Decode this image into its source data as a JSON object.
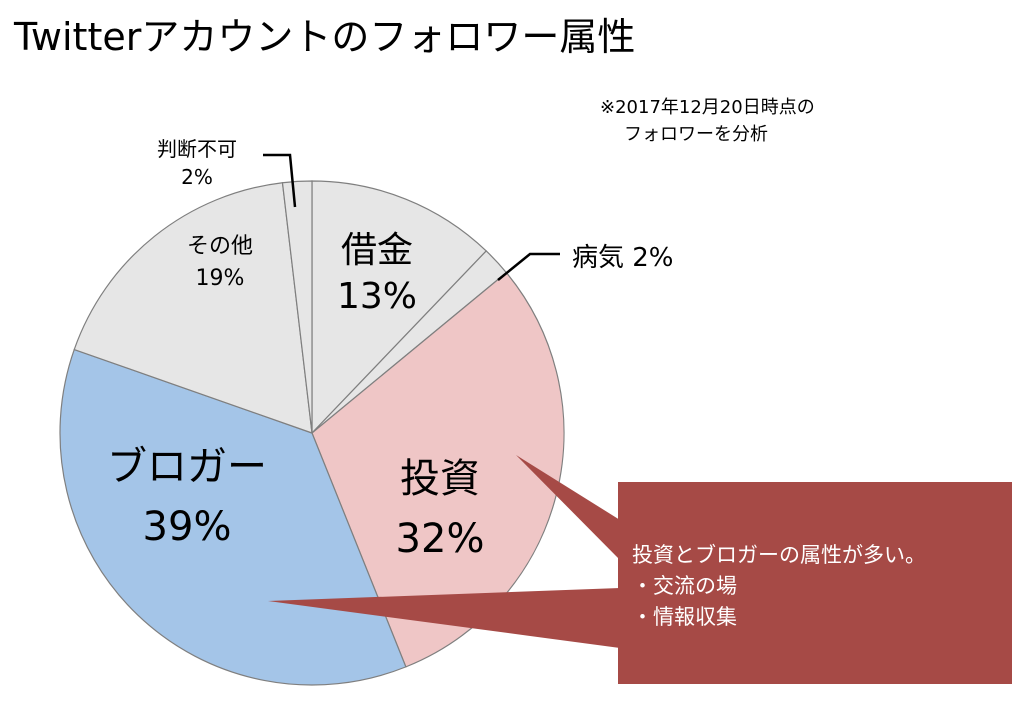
{
  "title": "Twitterアカウントのフォロワー属性",
  "note": {
    "line1": "※2017年12月20日時点の",
    "line2": "フォロワーを分析"
  },
  "chart_data": {
    "type": "pie",
    "slices": [
      {
        "label": "借金",
        "value": 13,
        "display": "13%",
        "color": "#e6e6e6"
      },
      {
        "label": "病気",
        "value": 2,
        "display": "2%",
        "color": "#e6e6e6"
      },
      {
        "label": "投資",
        "value": 32,
        "display": "32%",
        "color": "#efc6c6"
      },
      {
        "label": "ブロガー",
        "value": 39,
        "display": "39%",
        "color": "#a4c5e8"
      },
      {
        "label": "その他",
        "value": 19,
        "display": "19%",
        "color": "#e6e6e6"
      },
      {
        "label": "判断不可",
        "value": 2,
        "display": "2%",
        "color": "#e6e6e6"
      }
    ],
    "start_angle_deg": 0,
    "direction": "clockwise"
  },
  "callout": {
    "lines": [
      "投資とブロガーの属性が多い。",
      "・交流の場",
      "・情報収集"
    ],
    "color": "#a64a46",
    "text_color": "#ffffff"
  }
}
